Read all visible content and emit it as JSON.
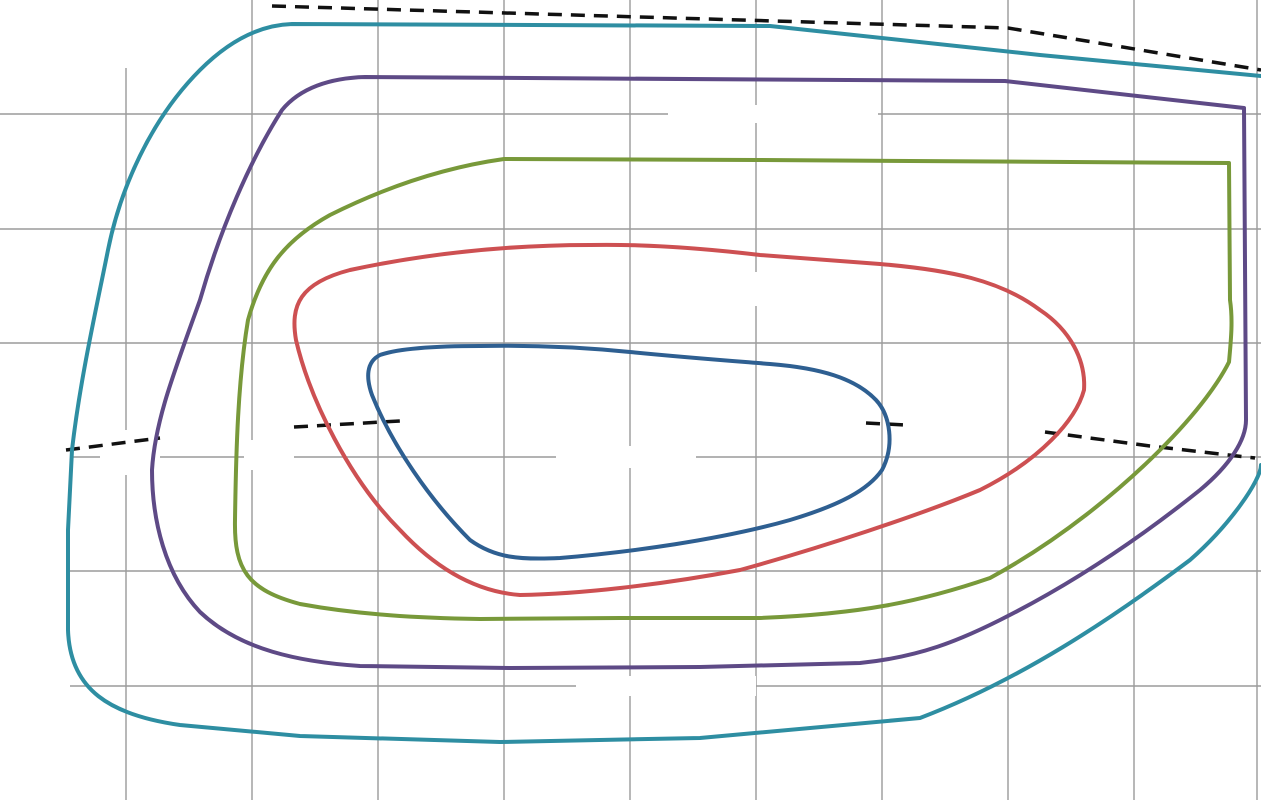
{
  "diagram": {
    "contours": [
      {
        "name": "outer-teal-contour",
        "color": "#2e8ea2"
      },
      {
        "name": "purple-contour",
        "color": "#5e4a86"
      },
      {
        "name": "green-contour",
        "color": "#78993a"
      },
      {
        "name": "red-contour",
        "color": "#cd5052"
      },
      {
        "name": "inner-blue-contour",
        "color": "#2e5f91"
      }
    ],
    "dashed_line_color": "#111111",
    "grid_color": "#9a9a9a",
    "background_color": "#ffffff"
  }
}
